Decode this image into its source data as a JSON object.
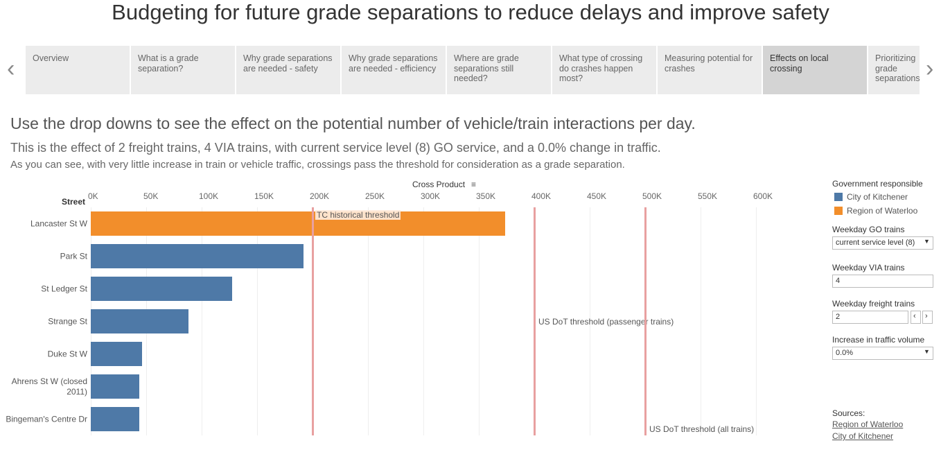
{
  "title": "Budgeting for future grade separations to reduce delays and improve safety",
  "nav": [
    "Overview",
    "What is a grade separation?",
    "Why grade separations are needed - safety",
    "Why grade separations are needed - efficiency",
    "Where are grade separations still needed?",
    "What type of crossing do crashes happen most?",
    "Measuring potential for crashes",
    "Effects on local crossing",
    "Prioritizing grade separations"
  ],
  "heading": "Use the drop downs to see the effect on the potential number of vehicle/train interactions per day.",
  "subheading": "This is the effect of 2 freight trains, 4 VIA trains, with current service level (8) GO service, and a 0.0% change in traffic.",
  "note": "As you can see, with very little increase in train or vehicle traffic, crossings pass the threshold for consideration as a grade separation.",
  "chart_data": {
    "type": "bar",
    "orientation": "horizontal",
    "x_label": "Cross Product",
    "y_label": "Street",
    "categories": [
      "Lancaster St W",
      "Park St",
      "St Ledger St",
      "Strange St",
      "Duke St W",
      "Ahrens St W (closed 2011)",
      "Bingeman's Centre Dr"
    ],
    "legend_title": "Government responsible",
    "series": [
      {
        "name": "City of Kitchener",
        "color": "#4e79a7",
        "values": [
          null,
          192000,
          127500,
          88000,
          46000,
          44000,
          44000
        ]
      },
      {
        "name": "Region of Waterloo",
        "color": "#f28e2b",
        "values": [
          374000,
          null,
          null,
          null,
          null,
          null,
          null
        ]
      }
    ],
    "xlim": [
      0,
      650000
    ],
    "xticks": [
      {
        "value": 0,
        "label": "0K"
      },
      {
        "value": 50000,
        "label": "50K"
      },
      {
        "value": 100000,
        "label": "100K"
      },
      {
        "value": 150000,
        "label": "150K"
      },
      {
        "value": 200000,
        "label": "200K"
      },
      {
        "value": 250000,
        "label": "250K"
      },
      {
        "value": 300000,
        "label": "300K"
      },
      {
        "value": 350000,
        "label": "350K"
      },
      {
        "value": 400000,
        "label": "400K"
      },
      {
        "value": 450000,
        "label": "450K"
      },
      {
        "value": 500000,
        "label": "500K"
      },
      {
        "value": 550000,
        "label": "550K"
      },
      {
        "value": 600000,
        "label": "600K"
      }
    ],
    "grid": true,
    "reference_lines": [
      {
        "value": 200000,
        "label": "TC historical threshold"
      },
      {
        "value": 400000,
        "label": "US DoT threshold (passenger trains)"
      },
      {
        "value": 500000,
        "label": "US DoT threshold (all trains)"
      }
    ],
    "reference_color": "#e8a0a0"
  },
  "filters": [
    {
      "label": "Weekday GO trains",
      "value": "current service level (8)"
    },
    {
      "label": "Weekday VIA trains",
      "value": "4"
    },
    {
      "label": "Weekday freight trains",
      "value": "2"
    },
    {
      "label": "Increase in traffic volume",
      "value": "0.0%"
    }
  ],
  "sources": {
    "label": "Sources:",
    "links": [
      "Region of Waterloo",
      "City of Kitchener"
    ]
  }
}
